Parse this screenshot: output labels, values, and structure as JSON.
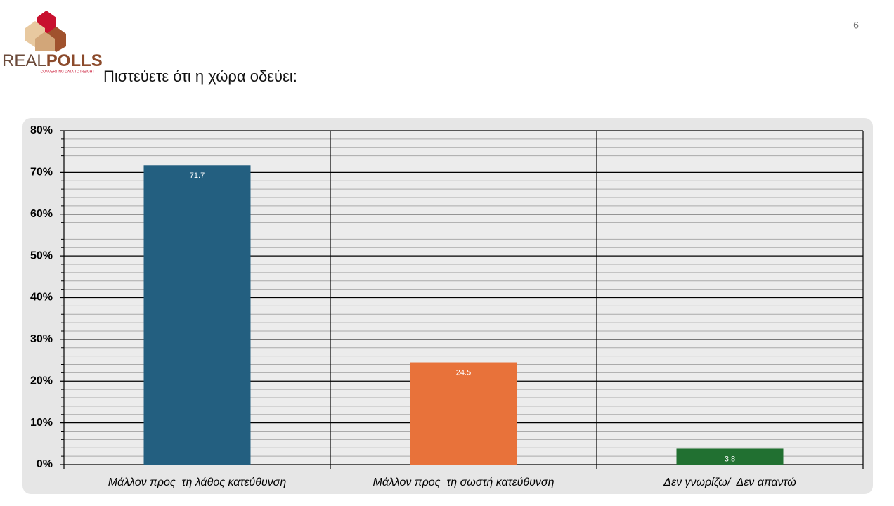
{
  "logo": {
    "parts": [
      "REAL",
      "POLLS"
    ],
    "tagline": "CONVERTING DATA TO INSIGHT"
  },
  "page_number": "6",
  "chart_data": {
    "type": "bar",
    "title": "Πιστεύετε ότι η χώρα οδεύει:",
    "categories": [
      "Μάλλον προς  τη λάθος κατεύθυνση",
      "Μάλλον προς  τη σωστή κατεύθυνση",
      "Δεν γνωρίζω/  Δεν απαντώ"
    ],
    "values": [
      71.7,
      24.5,
      3.8
    ],
    "colors": [
      "#235f80",
      "#e8723a",
      "#217031"
    ],
    "ylim": [
      0,
      80
    ],
    "yticks": [
      {
        "value": 0,
        "label": "0%"
      },
      {
        "value": 10,
        "label": "10%"
      },
      {
        "value": 20,
        "label": "20%"
      },
      {
        "value": 30,
        "label": "30%"
      },
      {
        "value": 40,
        "label": "40%"
      },
      {
        "value": 50,
        "label": "50%"
      },
      {
        "value": 60,
        "label": "60%"
      },
      {
        "value": 70,
        "label": "70%"
      },
      {
        "value": 80,
        "label": "80%"
      }
    ],
    "grid": true,
    "minor_per_major": 5
  }
}
